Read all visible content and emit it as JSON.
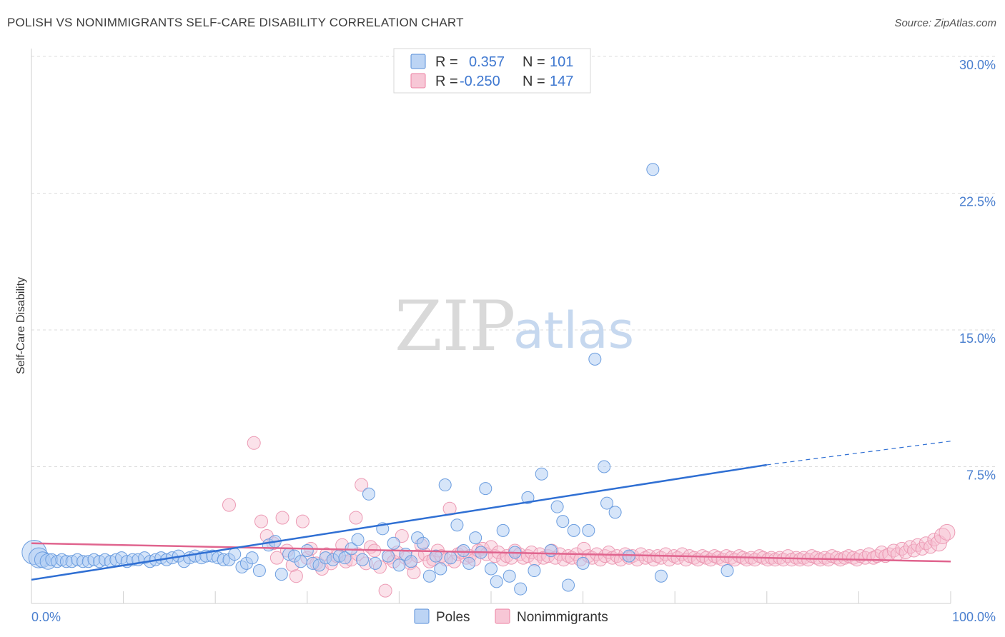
{
  "title": "POLISH VS NONIMMIGRANTS SELF-CARE DISABILITY CORRELATION CHART",
  "source": "Source: ZipAtlas.com",
  "watermark": {
    "zip": "ZIP",
    "atlas": "atlas"
  },
  "legend": {
    "r_label": "R =",
    "n_label": "N =",
    "poles": {
      "r": "0.357",
      "n": "101"
    },
    "nonimmigrants": {
      "r": "-0.250",
      "n": "147"
    }
  },
  "bottom_legend": {
    "poles": "Poles",
    "nonimmigrants": "Nonimmigrants"
  },
  "chart_data": {
    "type": "scatter",
    "ylabel": "Self-Care Disability",
    "xlabel": "",
    "xlim": [
      0,
      100
    ],
    "ylim": [
      0,
      30
    ],
    "y_ticks": [
      "30.0%",
      "22.5%",
      "15.0%",
      "7.5%"
    ],
    "y_tick_values": [
      30,
      22.5,
      15,
      7.5
    ],
    "x_tick_labels": [
      "0.0%",
      "100.0%"
    ],
    "grid": "horizontal dashed",
    "colors": {
      "poles": "#5a8fd8",
      "nonimmigrants": "#ec82a3",
      "poles_line": "#2f6fd3",
      "nonimmigrants_line": "#e0648e"
    },
    "series": [
      {
        "name": "Poles",
        "trend": {
          "x0": 0,
          "y0": 1.3,
          "x1": 80,
          "y1": 7.6,
          "dashed_to_x": 100,
          "dashed_to_y": 8.9
        },
        "points": [
          [
            0.3,
            2.8
          ],
          [
            0.8,
            2.5
          ],
          [
            1.2,
            2.4
          ],
          [
            1.8,
            2.3
          ],
          [
            2.2,
            2.4
          ],
          [
            2.8,
            2.3
          ],
          [
            3.3,
            2.4
          ],
          [
            3.8,
            2.3
          ],
          [
            4.4,
            2.3
          ],
          [
            5.0,
            2.4
          ],
          [
            5.6,
            2.3
          ],
          [
            6.2,
            2.3
          ],
          [
            6.8,
            2.4
          ],
          [
            7.4,
            2.3
          ],
          [
            8.0,
            2.4
          ],
          [
            8.6,
            2.3
          ],
          [
            9.2,
            2.4
          ],
          [
            9.8,
            2.5
          ],
          [
            10.4,
            2.3
          ],
          [
            11.0,
            2.4
          ],
          [
            11.6,
            2.4
          ],
          [
            12.3,
            2.5
          ],
          [
            12.9,
            2.3
          ],
          [
            13.5,
            2.4
          ],
          [
            14.1,
            2.5
          ],
          [
            14.7,
            2.4
          ],
          [
            15.3,
            2.5
          ],
          [
            16.0,
            2.6
          ],
          [
            16.6,
            2.3
          ],
          [
            17.2,
            2.5
          ],
          [
            17.8,
            2.6
          ],
          [
            18.5,
            2.5
          ],
          [
            19.0,
            2.6
          ],
          [
            19.7,
            2.6
          ],
          [
            20.3,
            2.5
          ],
          [
            20.9,
            2.4
          ],
          [
            21.5,
            2.4
          ],
          [
            22.1,
            2.7
          ],
          [
            22.9,
            2.0
          ],
          [
            23.4,
            2.2
          ],
          [
            24.0,
            2.5
          ],
          [
            24.8,
            1.8
          ],
          [
            25.8,
            3.2
          ],
          [
            26.5,
            3.4
          ],
          [
            27.2,
            1.6
          ],
          [
            28.0,
            2.7
          ],
          [
            28.6,
            2.6
          ],
          [
            29.3,
            2.3
          ],
          [
            30.0,
            2.9
          ],
          [
            30.6,
            2.2
          ],
          [
            31.3,
            2.1
          ],
          [
            32.0,
            2.5
          ],
          [
            32.8,
            2.4
          ],
          [
            33.5,
            2.6
          ],
          [
            34.1,
            2.5
          ],
          [
            34.8,
            3.0
          ],
          [
            35.5,
            3.5
          ],
          [
            36.0,
            2.4
          ],
          [
            36.7,
            6.0
          ],
          [
            37.4,
            2.2
          ],
          [
            38.2,
            4.1
          ],
          [
            38.8,
            2.6
          ],
          [
            39.4,
            3.3
          ],
          [
            40.0,
            2.1
          ],
          [
            40.7,
            2.7
          ],
          [
            41.3,
            2.3
          ],
          [
            42.0,
            3.6
          ],
          [
            42.6,
            3.3
          ],
          [
            43.3,
            1.5
          ],
          [
            44.0,
            2.6
          ],
          [
            44.5,
            1.9
          ],
          [
            45.0,
            6.5
          ],
          [
            45.6,
            2.5
          ],
          [
            46.3,
            4.3
          ],
          [
            47.0,
            2.9
          ],
          [
            47.6,
            2.2
          ],
          [
            48.3,
            3.6
          ],
          [
            48.9,
            2.8
          ],
          [
            49.4,
            6.3
          ],
          [
            50.0,
            1.9
          ],
          [
            50.6,
            1.2
          ],
          [
            51.3,
            4.0
          ],
          [
            52.0,
            1.5
          ],
          [
            52.6,
            2.8
          ],
          [
            53.2,
            0.8
          ],
          [
            54.0,
            5.8
          ],
          [
            54.7,
            1.8
          ],
          [
            55.5,
            7.1
          ],
          [
            56.5,
            2.9
          ],
          [
            57.2,
            5.3
          ],
          [
            57.8,
            4.5
          ],
          [
            58.4,
            1.0
          ],
          [
            59.0,
            4.0
          ],
          [
            60.0,
            2.2
          ],
          [
            60.6,
            4.0
          ],
          [
            61.3,
            13.4
          ],
          [
            62.3,
            7.5
          ],
          [
            62.6,
            5.5
          ],
          [
            63.5,
            5.0
          ],
          [
            65.0,
            2.6
          ],
          [
            67.6,
            23.8
          ],
          [
            68.5,
            1.5
          ],
          [
            75.7,
            1.8
          ]
        ]
      },
      {
        "name": "Nonimmigrants",
        "trend": {
          "x0": 0,
          "y0": 3.3,
          "x1": 100,
          "y1": 2.3
        },
        "points": [
          [
            21.5,
            5.4
          ],
          [
            24.2,
            8.8
          ],
          [
            25.0,
            4.5
          ],
          [
            25.6,
            3.7
          ],
          [
            26.3,
            3.3
          ],
          [
            26.7,
            2.5
          ],
          [
            27.3,
            4.7
          ],
          [
            27.8,
            2.9
          ],
          [
            28.4,
            2.1
          ],
          [
            28.8,
            1.5
          ],
          [
            29.5,
            4.5
          ],
          [
            30.0,
            2.5
          ],
          [
            30.4,
            3.0
          ],
          [
            31.0,
            2.2
          ],
          [
            31.6,
            1.9
          ],
          [
            32.1,
            2.7
          ],
          [
            32.6,
            2.2
          ],
          [
            33.2,
            2.6
          ],
          [
            33.8,
            3.2
          ],
          [
            34.2,
            2.3
          ],
          [
            34.8,
            2.4
          ],
          [
            35.3,
            4.7
          ],
          [
            35.5,
            2.7
          ],
          [
            35.9,
            6.5
          ],
          [
            36.4,
            2.2
          ],
          [
            36.9,
            3.1
          ],
          [
            37.3,
            2.9
          ],
          [
            37.9,
            2.0
          ],
          [
            38.5,
            0.7
          ],
          [
            38.9,
            2.5
          ],
          [
            39.4,
            2.3
          ],
          [
            39.8,
            2.8
          ],
          [
            40.3,
            3.7
          ],
          [
            40.7,
            2.5
          ],
          [
            41.2,
            2.2
          ],
          [
            41.6,
            1.7
          ],
          [
            42.0,
            2.6
          ],
          [
            42.4,
            3.2
          ],
          [
            42.8,
            2.7
          ],
          [
            43.3,
            2.3
          ],
          [
            43.7,
            2.4
          ],
          [
            44.2,
            2.9
          ],
          [
            44.6,
            2.6
          ],
          [
            45.1,
            2.4
          ],
          [
            45.5,
            5.2
          ],
          [
            46.0,
            2.3
          ],
          [
            46.4,
            2.7
          ],
          [
            46.8,
            2.8
          ],
          [
            47.3,
            2.5
          ],
          [
            47.7,
            2.6
          ],
          [
            48.2,
            2.4
          ],
          [
            48.6,
            2.9
          ],
          [
            49.1,
            3.0
          ],
          [
            49.5,
            2.7
          ],
          [
            50.0,
            3.1
          ],
          [
            50.4,
            2.6
          ],
          [
            50.8,
            2.8
          ],
          [
            51.3,
            2.4
          ],
          [
            51.7,
            2.6
          ],
          [
            52.2,
            2.5
          ],
          [
            52.6,
            2.9
          ],
          [
            53.1,
            2.7
          ],
          [
            53.5,
            2.5
          ],
          [
            54.0,
            2.6
          ],
          [
            54.4,
            2.8
          ],
          [
            54.8,
            2.4
          ],
          [
            55.3,
            2.7
          ],
          [
            55.7,
            2.5
          ],
          [
            56.2,
            2.6
          ],
          [
            56.6,
            2.9
          ],
          [
            57.0,
            2.5
          ],
          [
            57.5,
            2.7
          ],
          [
            57.9,
            2.4
          ],
          [
            58.4,
            2.6
          ],
          [
            58.8,
            2.5
          ],
          [
            59.3,
            2.7
          ],
          [
            59.7,
            2.4
          ],
          [
            60.1,
            3.0
          ],
          [
            60.6,
            2.6
          ],
          [
            61.0,
            2.5
          ],
          [
            61.5,
            2.7
          ],
          [
            61.9,
            2.4
          ],
          [
            62.4,
            2.6
          ],
          [
            62.8,
            2.8
          ],
          [
            63.2,
            2.5
          ],
          [
            63.7,
            2.6
          ],
          [
            64.1,
            2.4
          ],
          [
            64.6,
            2.7
          ],
          [
            65.0,
            2.5
          ],
          [
            65.4,
            2.6
          ],
          [
            65.9,
            2.4
          ],
          [
            66.3,
            2.7
          ],
          [
            66.8,
            2.5
          ],
          [
            67.2,
            2.6
          ],
          [
            67.7,
            2.4
          ],
          [
            68.1,
            2.6
          ],
          [
            68.5,
            2.5
          ],
          [
            69.0,
            2.7
          ],
          [
            69.4,
            2.4
          ],
          [
            69.9,
            2.6
          ],
          [
            70.3,
            2.5
          ],
          [
            70.8,
            2.7
          ],
          [
            71.2,
            2.4
          ],
          [
            71.6,
            2.6
          ],
          [
            72.1,
            2.5
          ],
          [
            72.5,
            2.4
          ],
          [
            73.0,
            2.6
          ],
          [
            73.4,
            2.5
          ],
          [
            73.9,
            2.4
          ],
          [
            74.3,
            2.6
          ],
          [
            74.7,
            2.5
          ],
          [
            75.2,
            2.4
          ],
          [
            75.6,
            2.6
          ],
          [
            76.1,
            2.5
          ],
          [
            76.5,
            2.4
          ],
          [
            77.0,
            2.6
          ],
          [
            77.4,
            2.5
          ],
          [
            77.8,
            2.4
          ],
          [
            78.3,
            2.5
          ],
          [
            78.7,
            2.4
          ],
          [
            79.2,
            2.6
          ],
          [
            79.6,
            2.5
          ],
          [
            80.1,
            2.4
          ],
          [
            80.5,
            2.5
          ],
          [
            80.9,
            2.4
          ],
          [
            81.4,
            2.5
          ],
          [
            81.8,
            2.4
          ],
          [
            82.3,
            2.6
          ],
          [
            82.7,
            2.4
          ],
          [
            83.2,
            2.5
          ],
          [
            83.6,
            2.4
          ],
          [
            84.0,
            2.5
          ],
          [
            84.5,
            2.4
          ],
          [
            84.9,
            2.6
          ],
          [
            85.4,
            2.5
          ],
          [
            85.8,
            2.4
          ],
          [
            86.3,
            2.5
          ],
          [
            86.7,
            2.4
          ],
          [
            87.1,
            2.6
          ],
          [
            87.6,
            2.5
          ],
          [
            88.0,
            2.4
          ],
          [
            88.5,
            2.5
          ],
          [
            88.9,
            2.6
          ],
          [
            89.4,
            2.5
          ],
          [
            89.8,
            2.4
          ],
          [
            90.2,
            2.6
          ],
          [
            90.7,
            2.5
          ],
          [
            91.1,
            2.7
          ],
          [
            91.6,
            2.5
          ],
          [
            92.0,
            2.6
          ],
          [
            92.5,
            2.8
          ],
          [
            92.9,
            2.6
          ],
          [
            93.3,
            2.7
          ],
          [
            93.8,
            2.9
          ],
          [
            94.2,
            2.7
          ],
          [
            94.7,
            3.0
          ],
          [
            95.1,
            2.8
          ],
          [
            95.6,
            3.1
          ],
          [
            96.0,
            2.9
          ],
          [
            96.4,
            3.2
          ],
          [
            96.9,
            3.0
          ],
          [
            97.3,
            3.3
          ],
          [
            97.8,
            3.1
          ],
          [
            98.2,
            3.5
          ],
          [
            98.7,
            3.3
          ],
          [
            99.1,
            3.7
          ],
          [
            99.6,
            3.9
          ]
        ]
      }
    ]
  }
}
